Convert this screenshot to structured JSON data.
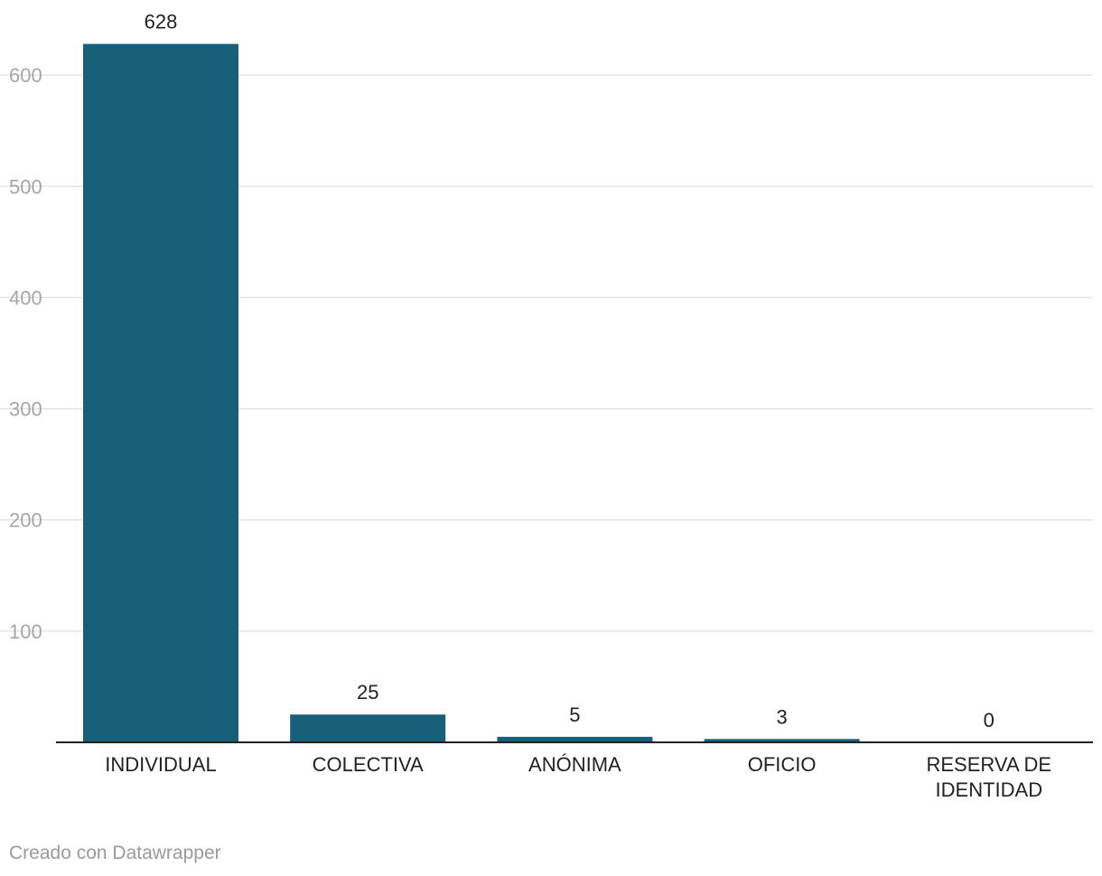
{
  "chart_data": {
    "type": "bar",
    "categories": [
      "INDIVIDUAL",
      "COLECTIVA",
      "ANÓNIMA",
      "OFICIO",
      "RESERVA DE IDENTIDAD"
    ],
    "values": [
      628,
      25,
      5,
      3,
      0
    ],
    "value_labels": [
      "628",
      "25",
      "5",
      "3",
      "0"
    ],
    "ylim": [
      0,
      600
    ],
    "yticks": [
      100,
      200,
      300,
      400,
      500,
      600
    ],
    "grid": true,
    "bar_color": "#17607a"
  },
  "footer": {
    "credit": "Creado con Datawrapper"
  }
}
